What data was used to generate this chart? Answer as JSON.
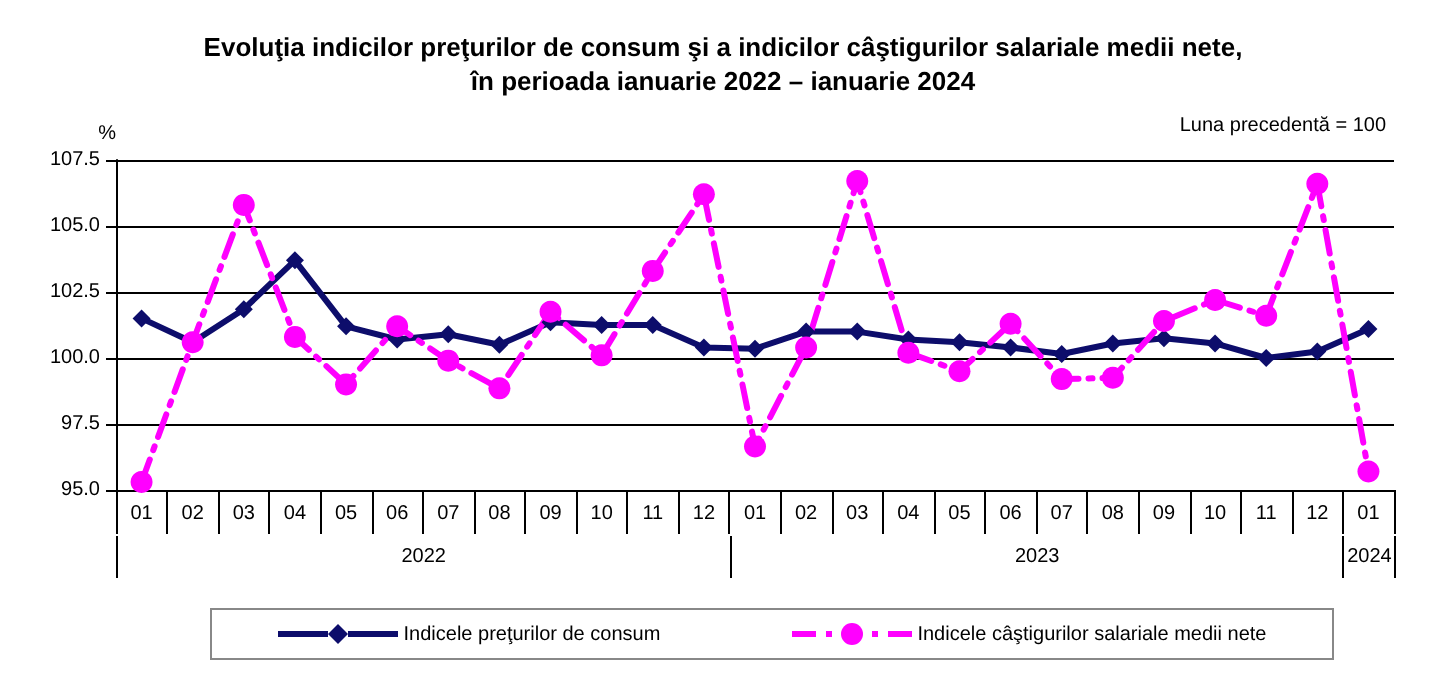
{
  "chart_data": {
    "type": "line",
    "title": "Evoluţia indicilor preţurilor de consum şi a indicilor câştigurilor salariale medii nete,\nîn perioada ianuarie 2022 – ianuarie 2024",
    "ylabel": "%",
    "categories": [
      "01",
      "02",
      "03",
      "04",
      "05",
      "06",
      "07",
      "08",
      "09",
      "10",
      "11",
      "12",
      "01",
      "02",
      "03",
      "04",
      "05",
      "06",
      "07",
      "08",
      "09",
      "10",
      "11",
      "12",
      "01"
    ],
    "series": [
      {
        "name": "Indicele preţurilor de consum",
        "color": "#0d0d6b",
        "marker": "diamond",
        "line_style": "solid",
        "values": [
          101.5,
          100.6,
          101.85,
          103.7,
          101.2,
          100.7,
          100.9,
          100.5,
          101.35,
          101.25,
          101.25,
          100.4,
          100.35,
          101.0,
          101.0,
          100.7,
          100.6,
          100.4,
          100.15,
          100.55,
          100.75,
          100.55,
          100.0,
          100.25,
          101.1
        ]
      },
      {
        "name": "Indicele câştigurilor salariale medii nete",
        "color": "#ff00ff",
        "marker": "circle",
        "line_style": "dashed",
        "values": [
          95.3,
          100.6,
          105.8,
          100.8,
          99.0,
          101.2,
          99.9,
          98.85,
          101.75,
          100.1,
          103.3,
          106.2,
          96.65,
          100.4,
          106.7,
          100.2,
          99.5,
          101.3,
          99.2,
          99.25,
          101.4,
          102.2,
          101.6,
          106.6,
          95.7
        ]
      }
    ],
    "ylim": [
      95,
      107.5
    ],
    "yticks": [
      {
        "value": 95,
        "label": "95.0"
      },
      97.5,
      {
        "value": 100,
        "label": "100.0"
      },
      102.5,
      {
        "value": 105,
        "label": "105.0"
      },
      107.5
    ],
    "grid": "y",
    "legend": "bottom",
    "annotations": [
      "Luna precedentă = 100",
      "2022",
      "2023",
      "2024"
    ]
  }
}
